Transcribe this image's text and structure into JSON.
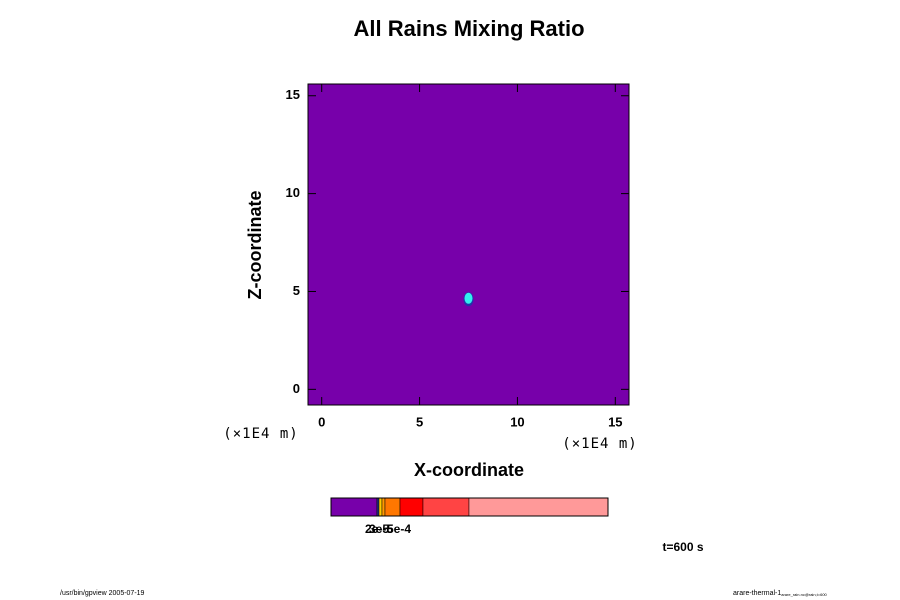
{
  "chart_data": {
    "type": "field",
    "title": "All Rains Mixing Ratio",
    "xlabel": "X-coordinate",
    "ylabel": "Z-coordinate",
    "x_unit": "(×1E4 m)",
    "y_unit": "(×1E4 m)",
    "xlim": [
      -0.7,
      15.7
    ],
    "ylim": [
      -0.8,
      15.6
    ],
    "xticks": [
      0,
      5,
      10,
      15
    ],
    "yticks": [
      0,
      5,
      10,
      15
    ],
    "background_color": "#7700aa",
    "feature": {
      "x": 7.5,
      "y": 4.6,
      "color": "#33eeee",
      "edge": "#2233aa"
    },
    "colorbar_colors": [
      "#7700aa",
      "#223388",
      "#ffcc00",
      "#ff9900",
      "#ff7700",
      "#ff0000",
      "#ff4444",
      "#ff9999"
    ],
    "colorbar_labels": [
      "2e-5",
      "3e-5",
      "5e-4"
    ],
    "time_label": "t=600 s",
    "footer_left": "/usr/bin/gpview 2005-07-19",
    "footer_right": "arare-thermal-1",
    "footer_right_sub": "arare_rain.nc@rain,t=600"
  }
}
